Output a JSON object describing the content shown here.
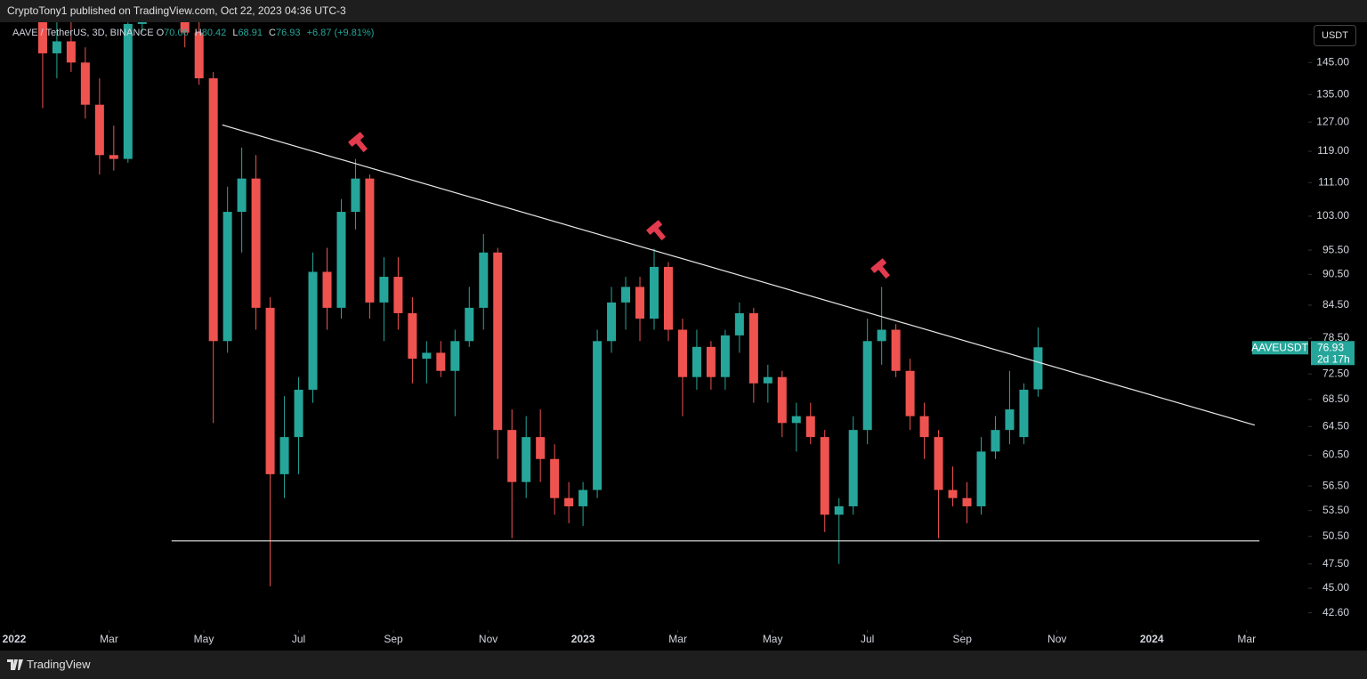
{
  "header": {
    "publisher": "CryptoTony1 published on TradingView.com, Oct 22, 2023 04:36 UTC-3"
  },
  "footer": {
    "brand": "TradingView"
  },
  "chart_data": {
    "type": "candlestick",
    "symbol_label": "AAVE / TetherUS, 3D, BINANCE",
    "ohlc_labels": [
      "O",
      "H",
      "L",
      "C"
    ],
    "change_label": "+6.87 (+9.81%)",
    "currency_button": "USDT",
    "series_name": "AAVEUSDT",
    "countdown": "2d 17h",
    "up_color": "#26a69a",
    "down_color": "#ef5350",
    "log_scale": true,
    "grid": false,
    "x": [
      0.6,
      0.9,
      1.2,
      1.5,
      1.8,
      2.1,
      2.4,
      2.7,
      3,
      3.3,
      3.6,
      3.9,
      4.2,
      4.5,
      4.8,
      5.1,
      5.4,
      5.7,
      6,
      6.3,
      6.6,
      6.9,
      7.2,
      7.5,
      7.8,
      8.1,
      8.4,
      8.7,
      9,
      9.3,
      9.6,
      9.9,
      10.2,
      10.5,
      10.8,
      11.1,
      11.4,
      11.7,
      12,
      12.3,
      12.6,
      12.9,
      13.2,
      13.5,
      13.8,
      14.1,
      14.4,
      14.7,
      15,
      15.3,
      15.6,
      15.9,
      16.2,
      16.5,
      16.8,
      17.1,
      17.4,
      17.7,
      18,
      18.3,
      18.6,
      18.9,
      19.2,
      19.5,
      19.8,
      20.1,
      20.4,
      20.7,
      21,
      21.3,
      21.6
    ],
    "open": [
      165,
      148,
      152,
      145,
      132,
      118,
      117,
      158,
      180,
      185,
      178,
      155,
      140,
      78,
      104,
      112,
      84,
      58,
      63,
      70,
      91,
      84,
      104,
      112,
      85,
      90,
      83,
      75,
      76,
      73,
      78,
      84,
      95,
      64,
      57,
      63,
      60,
      55,
      54,
      56,
      78,
      85,
      88,
      82,
      92,
      80,
      72,
      77,
      72,
      79,
      83,
      71,
      72,
      65,
      66,
      63,
      53,
      54,
      64,
      78,
      80,
      73,
      66,
      63,
      56,
      55,
      54,
      61,
      64,
      63,
      70.06
    ],
    "high": [
      175,
      160,
      168,
      150,
      140,
      126,
      162,
      190,
      195,
      195,
      185,
      160,
      142,
      110,
      120,
      118,
      86,
      69,
      72,
      95,
      96,
      107,
      117,
      113,
      94,
      94,
      86,
      78,
      78,
      80,
      88,
      99,
      96,
      67,
      66,
      67,
      62,
      57,
      57,
      80,
      88,
      90,
      90,
      95.8,
      93,
      82,
      80,
      78,
      80,
      85,
      84,
      74,
      73,
      68,
      68,
      64,
      55,
      66,
      82,
      88,
      81,
      75,
      68,
      64,
      59,
      57,
      63,
      66,
      73,
      71,
      80.42
    ],
    "low": [
      131,
      140,
      142,
      128,
      113,
      114,
      116,
      155,
      170,
      172,
      150,
      138,
      65,
      76,
      95,
      80,
      45.2,
      55,
      58,
      68,
      80,
      82,
      100,
      82,
      78,
      80,
      71,
      71,
      72,
      66,
      77,
      80,
      60,
      50.3,
      55,
      57,
      53,
      52,
      51.7,
      55,
      76,
      80,
      78,
      80,
      78,
      66,
      70,
      70,
      70,
      76,
      68,
      68,
      63,
      61,
      62,
      51,
      47.5,
      53,
      62,
      74,
      72,
      64,
      60,
      50.3,
      54,
      52,
      53,
      60,
      62,
      62,
      68.91
    ],
    "close": [
      148,
      152,
      145,
      132,
      118,
      117,
      158,
      180,
      185,
      178,
      155,
      140,
      78,
      104,
      112,
      84,
      58,
      63,
      70,
      91,
      84,
      104,
      112,
      85,
      90,
      83,
      75,
      76,
      73,
      78,
      84,
      95,
      64,
      57,
      63,
      60,
      55,
      54,
      56,
      78,
      85,
      88,
      82,
      92,
      80,
      72,
      77,
      72,
      79,
      83,
      71,
      72,
      65,
      66,
      63,
      53,
      54,
      64,
      78,
      80,
      73,
      66,
      63,
      56,
      55,
      54,
      61,
      64,
      67,
      70,
      76.93
    ],
    "trendlines": [
      {
        "x": [
          4.39,
          26.17
        ],
        "y": [
          126.2,
          64.7
        ]
      },
      {
        "x": [
          3.32,
          26.27
        ],
        "y": [
          50,
          50
        ]
      }
    ],
    "xlim": [
      -0.3,
      27.3
    ],
    "xticks": [
      {
        "value": 0,
        "label": "2022"
      },
      {
        "value": 2,
        "label": "Mar"
      },
      {
        "value": 4,
        "label": "May"
      },
      {
        "value": 6,
        "label": "Jul"
      },
      {
        "value": 8,
        "label": "Sep"
      },
      {
        "value": 10,
        "label": "Nov"
      },
      {
        "value": 12,
        "label": "2023"
      },
      {
        "value": 14,
        "label": "Mar"
      },
      {
        "value": 16,
        "label": "May"
      },
      {
        "value": 18,
        "label": "Jul"
      },
      {
        "value": 20,
        "label": "Sep"
      },
      {
        "value": 22,
        "label": "Nov"
      },
      {
        "value": 24,
        "label": "2024"
      },
      {
        "value": 26,
        "label": "Mar"
      }
    ],
    "ylim": [
      41,
      158.6
    ],
    "yticks": [
      {
        "value": 145,
        "label": "145.00"
      },
      {
        "value": 135,
        "label": "135.00"
      },
      {
        "value": 127,
        "label": "127.00"
      },
      {
        "value": 119,
        "label": "119.00"
      },
      {
        "value": 111,
        "label": "111.00"
      },
      {
        "value": 103,
        "label": "103.00"
      },
      {
        "value": 95.5,
        "label": "95.50"
      },
      {
        "value": 90.5,
        "label": "90.50"
      },
      {
        "value": 84.5,
        "label": "84.50"
      },
      {
        "value": 78.5,
        "label": "78.50"
      },
      {
        "value": 72.5,
        "label": "72.50"
      },
      {
        "value": 68.5,
        "label": "68.50"
      },
      {
        "value": 64.5,
        "label": "64.50"
      },
      {
        "value": 60.5,
        "label": "60.50"
      },
      {
        "value": 56.5,
        "label": "56.50"
      },
      {
        "value": 53.5,
        "label": "53.50"
      },
      {
        "value": 50.5,
        "label": "50.50"
      },
      {
        "value": 47.5,
        "label": "47.50"
      },
      {
        "value": 45,
        "label": "45.00"
      },
      {
        "value": 42.6,
        "label": "42.60"
      }
    ]
  }
}
